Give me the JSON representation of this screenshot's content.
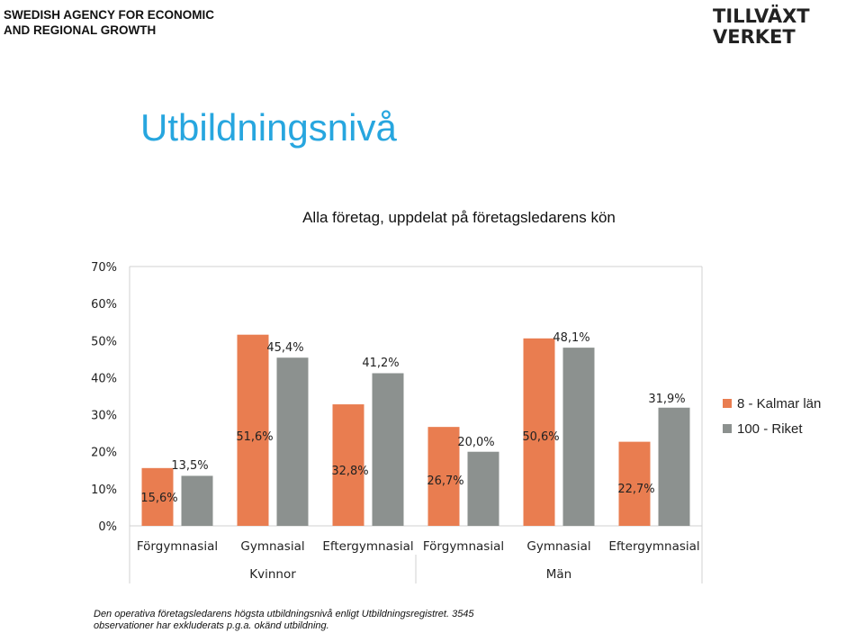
{
  "header": {
    "agency_line1": "SWEDISH AGENCY FOR ECONOMIC",
    "agency_line2": "AND REGIONAL GROWTH",
    "logo_line1": "TILLVÄXT",
    "logo_line2": "VERKET"
  },
  "slide_title": "Utbildningsnivå",
  "footnote": {
    "line1": "Den operativa företagsledarens högsta utbildningsnivå enligt Utbildningsregistret. 3545",
    "line2": "observationer har exkluderats p.g.a. okänd utbildning."
  },
  "colors": {
    "kalmar": "#e97d50",
    "riket": "#8c918f",
    "title": "#27a6df"
  },
  "chart_data": {
    "type": "bar",
    "title": "Alla företag, uppdelat på företagsledarens kön",
    "ylim": [
      0,
      70
    ],
    "yticks": [
      "0%",
      "10%",
      "20%",
      "30%",
      "40%",
      "50%",
      "60%",
      "70%"
    ],
    "categories": [
      "Förgymnasial",
      "Gymnasial",
      "Eftergymnasial",
      "Förgymnasial",
      "Gymnasial",
      "Eftergymnasial"
    ],
    "groups": [
      "Kvinnor",
      "Män"
    ],
    "legend_position": "right",
    "series": [
      {
        "name": "8 - Kalmar län",
        "values": [
          15.6,
          51.6,
          32.8,
          26.7,
          50.6,
          22.7
        ],
        "labels": [
          "15,6%",
          "51,6%",
          "32,8%",
          "26,7%",
          "50,6%",
          "22,7%"
        ]
      },
      {
        "name": "100 - Riket",
        "values": [
          13.5,
          45.4,
          41.2,
          20.0,
          48.1,
          31.9
        ],
        "labels": [
          "13,5%",
          "45,4%",
          "41,2%",
          "20,0%",
          "48,1%",
          "31,9%"
        ]
      }
    ]
  }
}
